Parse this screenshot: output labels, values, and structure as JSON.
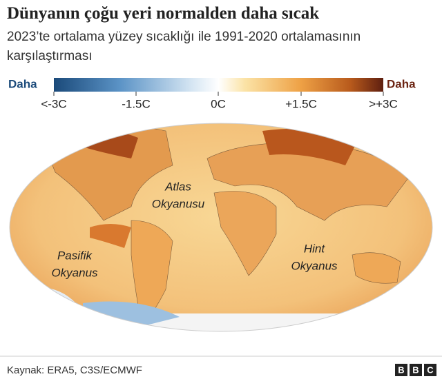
{
  "header": {
    "title": "Dünyanın çoğu yeri normalden daha sıcak",
    "subtitle": "2023’te ortalama yüzey sıcaklığı ile 1991-2020 ortalamasının karşılaştırması"
  },
  "legend": {
    "left_label": "Daha",
    "right_label": "Daha",
    "ticks": [
      "<-3C",
      "-1.5C",
      "0C",
      "+1.5C",
      ">+3C"
    ]
  },
  "map": {
    "labels": [
      {
        "lines": [
          "Atlas",
          "Okyanusu"
        ]
      },
      {
        "lines": [
          "Pasifik",
          "Okyanus"
        ]
      },
      {
        "lines": [
          "Hint",
          "Okyanus"
        ]
      }
    ]
  },
  "footer": {
    "source": "Kaynak: ERA5, C3S/ECMWF",
    "logo": [
      "B",
      "B",
      "C"
    ]
  }
}
